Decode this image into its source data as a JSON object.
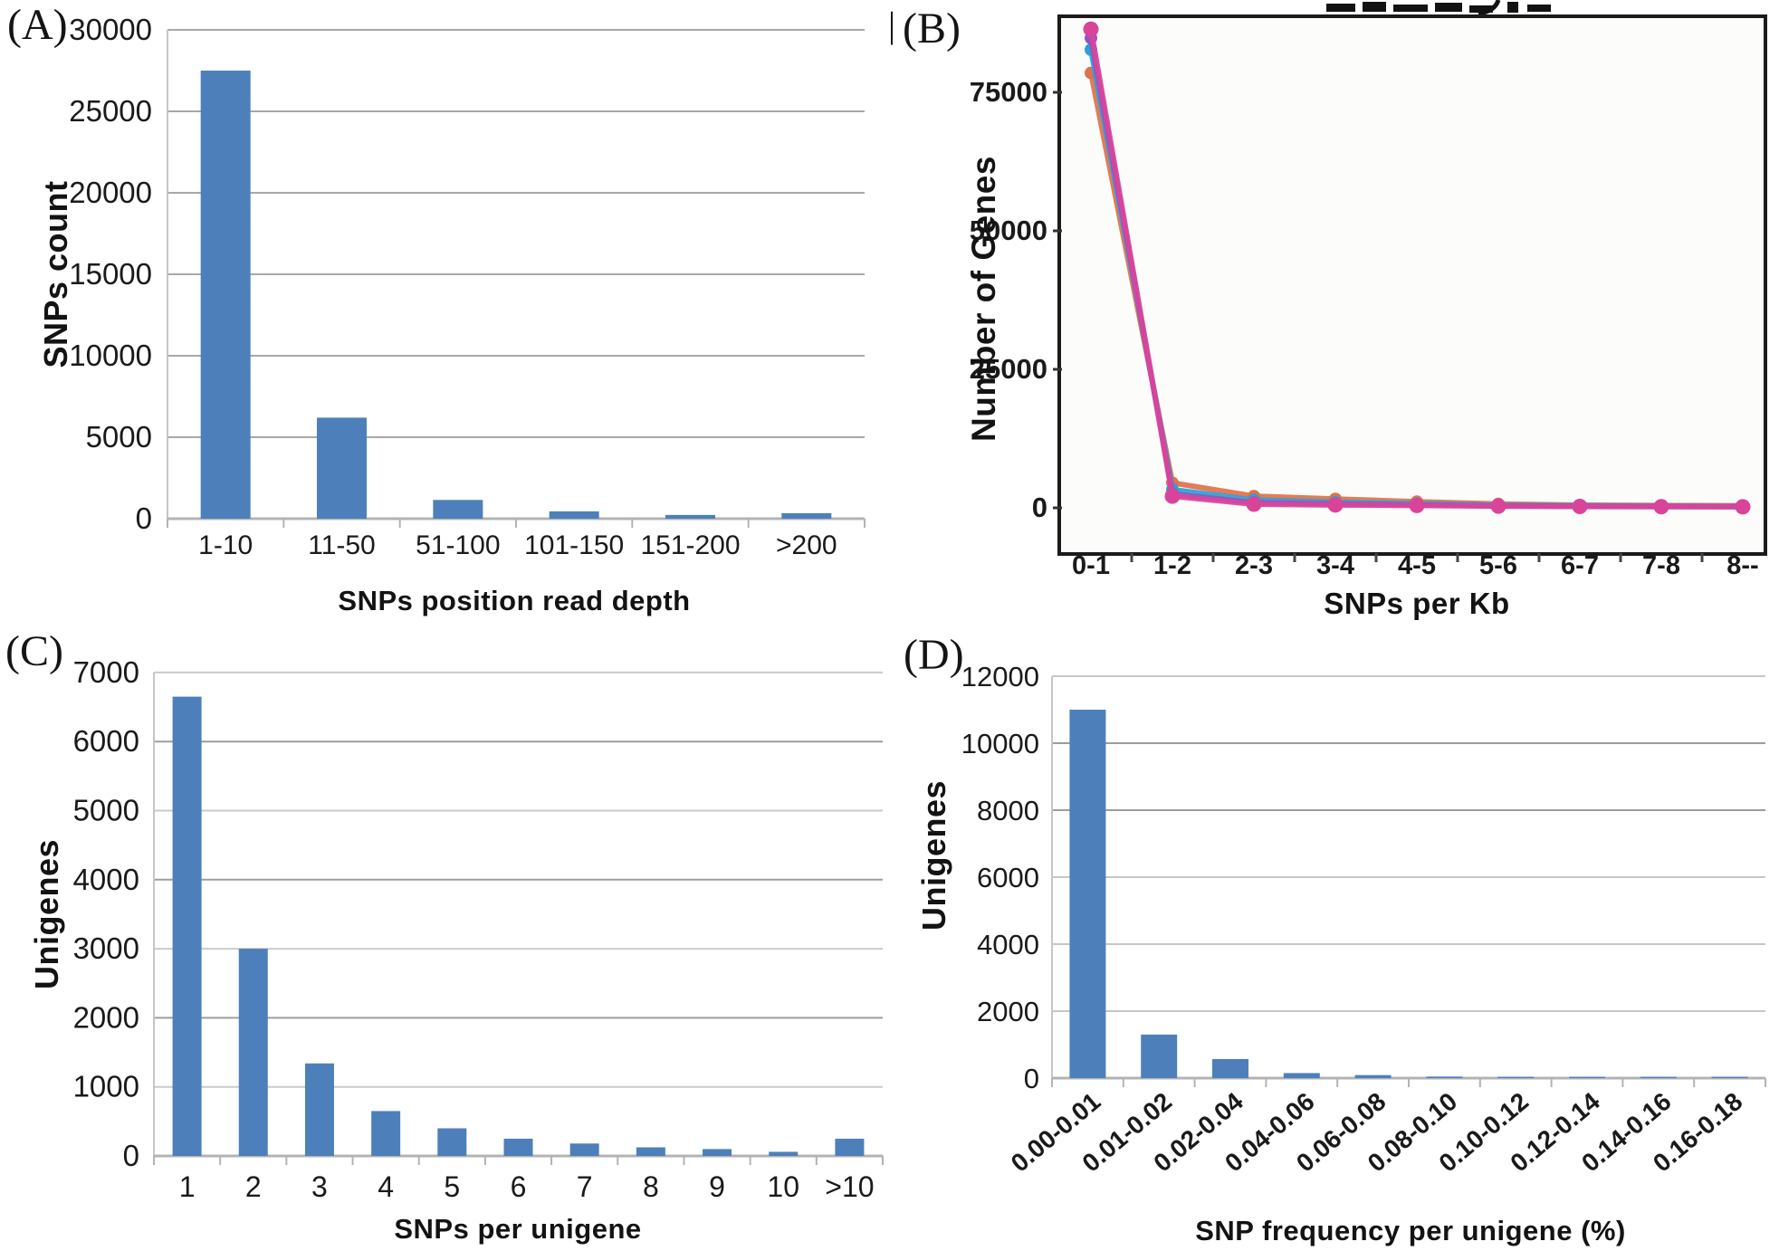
{
  "chart_data": [
    {
      "panel_label": "(A)",
      "type": "bar",
      "bar_color": "#4d80ba",
      "categories": [
        "1-10",
        "11-50",
        "51-100",
        "101-150",
        "151-200",
        ">200"
      ],
      "values": [
        27500,
        6200,
        1150,
        450,
        230,
        340
      ],
      "title": "",
      "xlabel": "SNPs position read depth",
      "ylabel": "SNPs count",
      "ylim": [
        0,
        30000
      ],
      "ytick_step": 5000,
      "ytick_labels": [
        "0",
        "5000",
        "10000",
        "15000",
        "20000",
        "25000",
        "30000"
      ],
      "grid": "horizontal"
    },
    {
      "panel_label": "(B)",
      "stray_mark": "|",
      "type": "line",
      "categories": [
        "0-1",
        "1-2",
        "2-3",
        "3-4",
        "4-5",
        "5-6",
        "6-7",
        "7-8",
        "8--"
      ],
      "series": [
        {
          "name": "orange-series",
          "color": "#e0724c",
          "values": [
            78500,
            4500,
            2100,
            1600,
            1100,
            700,
            500,
            420,
            380
          ]
        },
        {
          "name": "blue-series",
          "color": "#2ba0d8",
          "values": [
            82700,
            3300,
            1400,
            1000,
            750,
            480,
            380,
            300,
            260
          ]
        },
        {
          "name": "purple-series",
          "color": "#9055c0",
          "values": [
            84800,
            2500,
            950,
            700,
            520,
            360,
            290,
            240,
            220
          ]
        },
        {
          "name": "magenta-series",
          "color": "#d9449b",
          "values": [
            86400,
            2100,
            650,
            520,
            420,
            300,
            240,
            200,
            180
          ]
        }
      ],
      "title": "",
      "xlabel": "SNPs per Kb",
      "ylabel": "Number of Genes",
      "ylim": [
        0,
        90000
      ],
      "ytick_step": 25000,
      "ytick_labels": [
        "0",
        "25000",
        "50000",
        "75000"
      ],
      "legend": "none",
      "plot_bg": "#fcfcfa",
      "border_color": "#1b1b1b",
      "note_clipped_title_at_top_edge": true
    },
    {
      "panel_label": "(C)",
      "type": "bar",
      "bar_color": "#4d80ba",
      "categories": [
        "1",
        "2",
        "3",
        "4",
        "5",
        "6",
        "7",
        "8",
        "9",
        "10",
        ">10"
      ],
      "values": [
        6650,
        3000,
        1340,
        650,
        400,
        250,
        180,
        125,
        100,
        60,
        250
      ],
      "title": "",
      "xlabel": "SNPs per unigene",
      "ylabel": "Unigenes",
      "ylim": [
        0,
        7000
      ],
      "ytick_step": 1000,
      "ytick_labels": [
        "0",
        "1000",
        "2000",
        "3000",
        "4000",
        "5000",
        "6000",
        "7000"
      ],
      "grid": "horizontal"
    },
    {
      "panel_label": "(D)",
      "type": "bar",
      "bar_color": "#4d80ba",
      "categories": [
        "0.00-0.01",
        "0.01-0.02",
        "0.02-0.04",
        "0.04-0.06",
        "0.06-0.08",
        "0.08-0.10",
        "0.10-0.12",
        "0.12-0.14",
        "0.14-0.16",
        "0.16-0.18"
      ],
      "values": [
        11000,
        1300,
        570,
        150,
        90,
        45,
        35,
        30,
        35,
        25
      ],
      "title": "",
      "xlabel": "SNP frequency per unigene (%)",
      "ylabel": "Unigenes",
      "ylim": [
        0,
        12000
      ],
      "ytick_step": 2000,
      "ytick_labels": [
        "0",
        "2000",
        "4000",
        "6000",
        "8000",
        "10000",
        "12000"
      ],
      "x_tick_rotation": -40,
      "grid": "horizontal"
    }
  ]
}
